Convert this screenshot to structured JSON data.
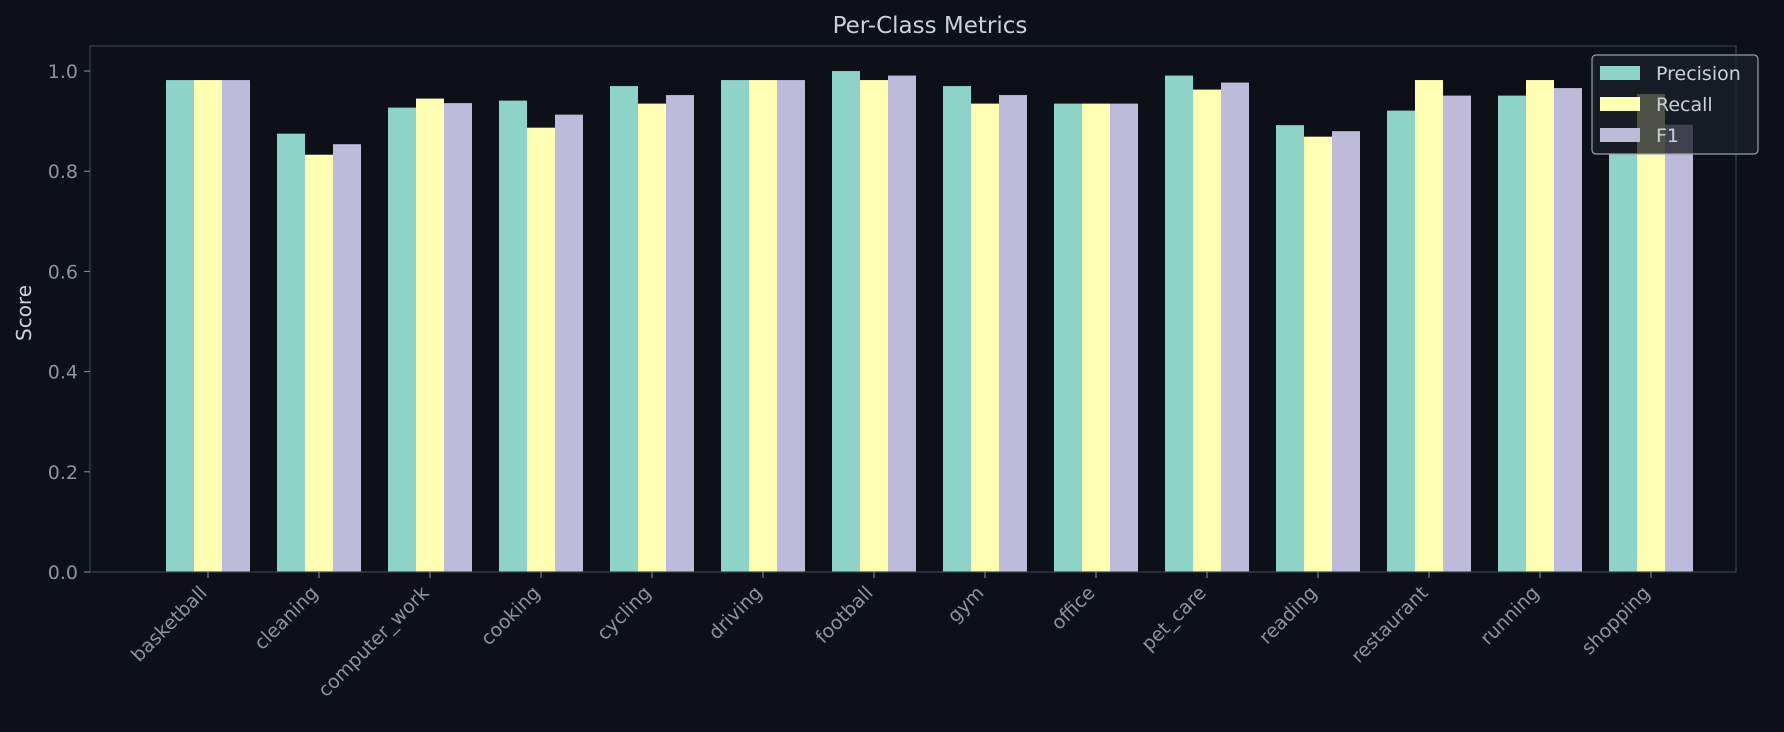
{
  "chart_data": {
    "type": "bar",
    "title": "Per-Class Metrics",
    "xlabel": "",
    "ylabel": "Score",
    "ylim": [
      0,
      1.05
    ],
    "yticks": [
      "0.0",
      "0.2",
      "0.4",
      "0.6",
      "0.8",
      "1.0"
    ],
    "grid": false,
    "legend_position": "top-right",
    "categories": [
      "basketball",
      "cleaning",
      "computer_work",
      "cooking",
      "cycling",
      "driving",
      "football",
      "gym",
      "office",
      "pet_care",
      "reading",
      "restaurant",
      "running",
      "shopping"
    ],
    "series": [
      {
        "name": "Precision",
        "color": "#8dd3c7",
        "values": [
          0.982,
          0.875,
          0.927,
          0.941,
          0.97,
          0.982,
          1.0,
          0.97,
          0.935,
          0.991,
          0.892,
          0.921,
          0.951,
          0.835
        ]
      },
      {
        "name": "Recall",
        "color": "#ffffb3",
        "values": [
          0.982,
          0.833,
          0.945,
          0.887,
          0.935,
          0.982,
          0.982,
          0.935,
          0.935,
          0.963,
          0.869,
          0.982,
          0.982,
          0.954
        ]
      },
      {
        "name": "F1",
        "color": "#bebada",
        "values": [
          0.982,
          0.854,
          0.936,
          0.913,
          0.952,
          0.982,
          0.991,
          0.952,
          0.935,
          0.977,
          0.88,
          0.951,
          0.966,
          0.893
        ]
      }
    ],
    "colors": {
      "background": "#0d1117",
      "axis": "#3b414a",
      "text": "#c9d1d9",
      "tick_text": "#8b949e"
    }
  }
}
